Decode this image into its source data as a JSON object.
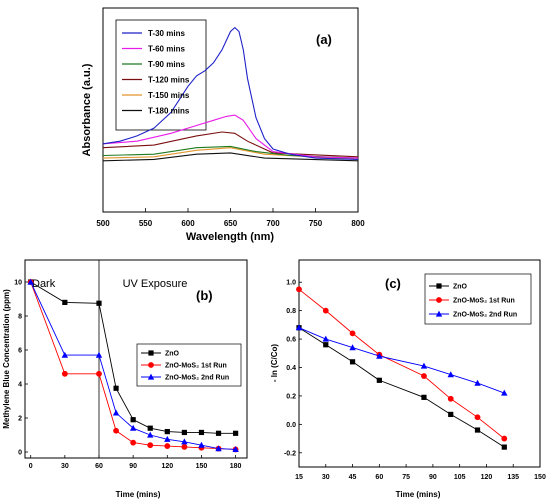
{
  "chart_data": [
    {
      "panel": "(a)",
      "type": "line",
      "xlabel": "Wavelength (nm)",
      "ylabel": "Absorbance (a.u.)",
      "xlim": [
        500,
        800
      ],
      "xticks": [
        "500",
        "550",
        "600",
        "650",
        "700",
        "750",
        "800"
      ],
      "legend_position": "top-left",
      "series": [
        {
          "name": "T-30 mins",
          "color": "#1f22c8",
          "x": [
            500,
            520,
            540,
            560,
            580,
            600,
            610,
            620,
            630,
            640,
            650,
            655,
            660,
            665,
            670,
            680,
            690,
            700,
            720,
            750,
            800
          ],
          "y": [
            0.3,
            0.31,
            0.33,
            0.36,
            0.42,
            0.52,
            0.56,
            0.58,
            0.61,
            0.66,
            0.73,
            0.745,
            0.73,
            0.66,
            0.55,
            0.4,
            0.32,
            0.28,
            0.26,
            0.245,
            0.24
          ]
        },
        {
          "name": "T-60 mins",
          "color": "#e81ce8",
          "x": [
            500,
            540,
            580,
            610,
            630,
            645,
            655,
            665,
            680,
            700,
            750,
            800
          ],
          "y": [
            0.3,
            0.31,
            0.34,
            0.37,
            0.39,
            0.405,
            0.41,
            0.39,
            0.32,
            0.27,
            0.25,
            0.245
          ]
        },
        {
          "name": "T-90 mins",
          "color": "#1e7a1e",
          "x": [
            500,
            560,
            610,
            650,
            680,
            720,
            800
          ],
          "y": [
            0.255,
            0.26,
            0.285,
            0.29,
            0.27,
            0.255,
            0.245
          ]
        },
        {
          "name": "T-120 mins",
          "color": "#7b0f0f",
          "x": [
            500,
            560,
            610,
            640,
            655,
            670,
            700,
            800
          ],
          "y": [
            0.285,
            0.295,
            0.33,
            0.345,
            0.34,
            0.31,
            0.265,
            0.25
          ]
        },
        {
          "name": "T-150 mins",
          "color": "#e2952c",
          "x": [
            500,
            560,
            610,
            650,
            690,
            800
          ],
          "y": [
            0.245,
            0.25,
            0.275,
            0.285,
            0.26,
            0.24
          ]
        },
        {
          "name": "T-180 mins",
          "color": "#111111",
          "x": [
            500,
            560,
            610,
            650,
            690,
            800
          ],
          "y": [
            0.235,
            0.24,
            0.26,
            0.265,
            0.245,
            0.235
          ]
        }
      ]
    },
    {
      "panel": "(b)",
      "type": "line",
      "xlabel": "Time (mins)",
      "ylabel": "Methylene Blue Concentration (ppm)",
      "xlim": [
        -5,
        190
      ],
      "ylim": [
        0,
        11
      ],
      "xticks": [
        0,
        30,
        60,
        90,
        120,
        150,
        180
      ],
      "yticks": [
        0,
        2,
        4,
        6,
        8,
        10
      ],
      "annotations": [
        "Dark",
        "UV Exposure"
      ],
      "divider_x": 60,
      "legend_position": "middle-right",
      "series": [
        {
          "name": "ZnO",
          "color": "#000000",
          "marker": "square",
          "x": [
            0,
            30,
            60,
            75,
            90,
            105,
            120,
            135,
            150,
            165,
            180
          ],
          "y": [
            10,
            8.8,
            8.75,
            3.75,
            1.9,
            1.4,
            1.2,
            1.15,
            1.15,
            1.1,
            1.1
          ]
        },
        {
          "name": "ZnO-MoS₂ 1st Run",
          "color": "#ff0000",
          "marker": "circle",
          "x": [
            0,
            30,
            60,
            75,
            90,
            105,
            120,
            135,
            150,
            165,
            180
          ],
          "y": [
            10,
            4.6,
            4.6,
            1.25,
            0.55,
            0.4,
            0.35,
            0.3,
            0.25,
            0.2,
            0.15
          ]
        },
        {
          "name": "ZnO-MoS₂ 2nd Run",
          "color": "#0000ff",
          "marker": "triangle",
          "x": [
            0,
            30,
            60,
            75,
            90,
            105,
            120,
            135,
            150,
            165,
            180
          ],
          "y": [
            10,
            5.7,
            5.7,
            2.3,
            1.4,
            1.0,
            0.75,
            0.6,
            0.4,
            0.2,
            0.15
          ]
        }
      ]
    },
    {
      "panel": "(c)",
      "type": "line",
      "xlabel": "Time (mins)",
      "ylabel": "- ln (C/Co)",
      "xlim": [
        15,
        150
      ],
      "ylim": [
        -0.3,
        1.1
      ],
      "xticks": [
        15,
        30,
        45,
        60,
        75,
        90,
        105,
        120,
        135,
        150
      ],
      "yticks": [
        -0.2,
        0.0,
        0.2,
        0.4,
        0.6,
        0.8,
        1.0
      ],
      "legend_position": "top-right",
      "series": [
        {
          "name": "ZnO",
          "color": "#000000",
          "marker": "square",
          "x": [
            15,
            30,
            45,
            60,
            85,
            100,
            115,
            130
          ],
          "y": [
            0.68,
            0.56,
            0.44,
            0.31,
            0.19,
            0.07,
            -0.04,
            -0.16
          ]
        },
        {
          "name": "ZnO-MoS₂ 1st Run",
          "color": "#ff0000",
          "marker": "circle",
          "x": [
            15,
            30,
            45,
            60,
            85,
            100,
            115,
            130
          ],
          "y": [
            0.95,
            0.8,
            0.64,
            0.49,
            0.34,
            0.18,
            0.05,
            -0.1
          ]
        },
        {
          "name": "ZnO-MoS₂ 2nd Run",
          "color": "#0000ff",
          "marker": "triangle",
          "x": [
            15,
            30,
            45,
            60,
            85,
            100,
            115,
            130
          ],
          "y": [
            0.68,
            0.6,
            0.54,
            0.48,
            0.41,
            0.35,
            0.29,
            0.22
          ]
        }
      ]
    }
  ]
}
